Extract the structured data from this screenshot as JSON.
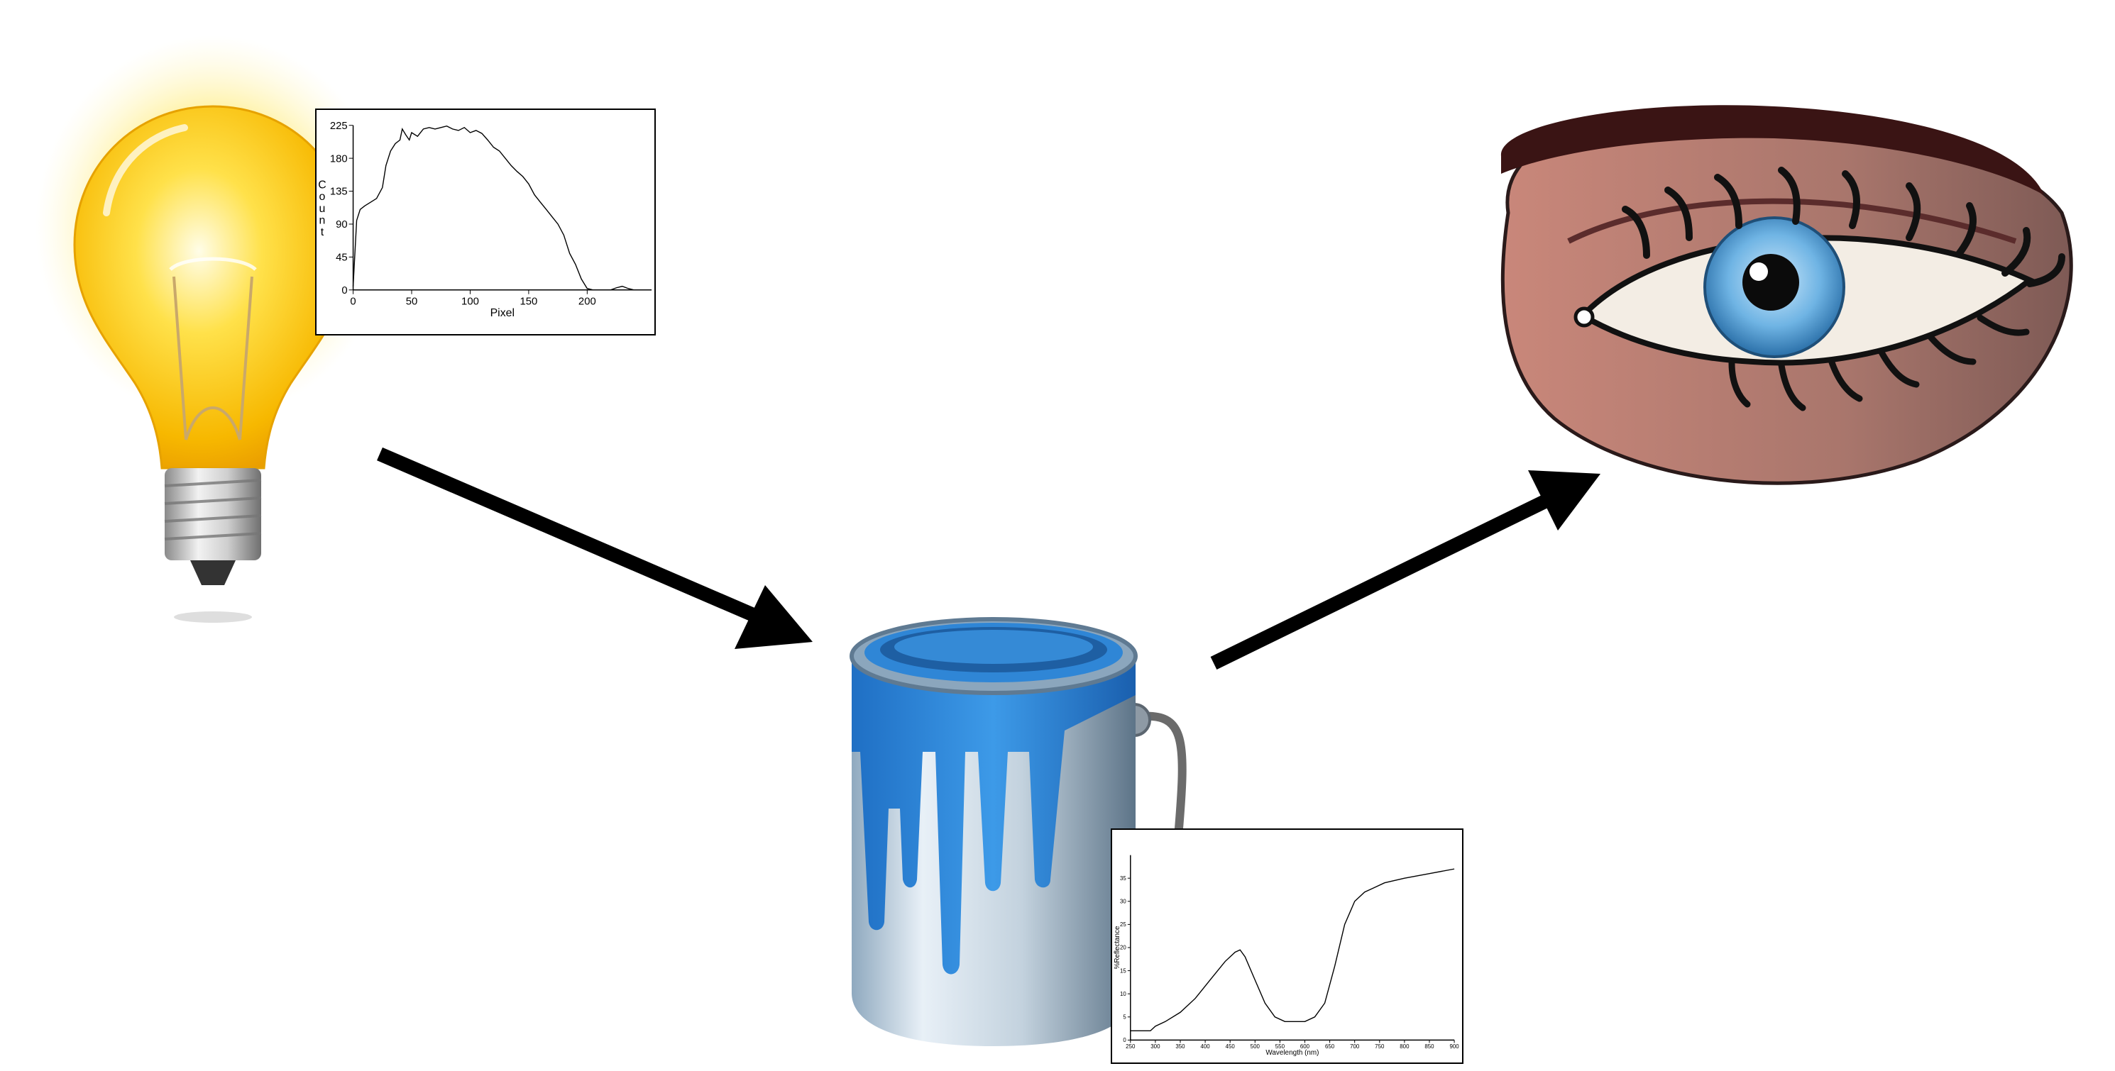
{
  "diagram": {
    "nodes": [
      {
        "id": "light-source",
        "icon": "light-bulb-icon"
      },
      {
        "id": "paint",
        "icon": "paint-bucket-icon"
      },
      {
        "id": "observer",
        "icon": "eye-icon"
      }
    ],
    "edges": [
      {
        "from": "light-source",
        "to": "paint"
      },
      {
        "from": "paint",
        "to": "observer"
      }
    ]
  },
  "chart_data": [
    {
      "type": "line",
      "xlabel": "Pixel",
      "ylabel": "Count",
      "xlim": [
        0,
        255
      ],
      "ylim": [
        0,
        225
      ],
      "xticks": [
        0,
        50,
        100,
        150,
        200
      ],
      "yticks": [
        0,
        45,
        90,
        135,
        180,
        225
      ],
      "grid": false,
      "x": [
        0,
        3,
        6,
        10,
        15,
        20,
        25,
        28,
        32,
        36,
        40,
        42,
        45,
        48,
        50,
        55,
        60,
        65,
        70,
        75,
        80,
        85,
        90,
        95,
        100,
        105,
        110,
        115,
        120,
        125,
        130,
        135,
        140,
        145,
        150,
        155,
        160,
        165,
        170,
        175,
        180,
        185,
        190,
        195,
        200,
        205,
        210,
        215,
        220,
        225,
        230,
        235,
        240,
        245,
        250,
        255
      ],
      "y": [
        5,
        95,
        110,
        115,
        120,
        125,
        140,
        170,
        190,
        200,
        205,
        220,
        212,
        205,
        215,
        210,
        220,
        222,
        220,
        222,
        224,
        220,
        218,
        222,
        215,
        218,
        214,
        205,
        195,
        190,
        180,
        170,
        162,
        155,
        145,
        130,
        120,
        110,
        100,
        90,
        75,
        50,
        35,
        15,
        2,
        0,
        0,
        0,
        0,
        3,
        5,
        2,
        0,
        0,
        0,
        0
      ]
    },
    {
      "type": "line",
      "xlabel": "Wavelength (nm)",
      "ylabel": "%Reflectance",
      "xlim": [
        250,
        900
      ],
      "ylim": [
        0,
        40
      ],
      "xticks": [
        250,
        300,
        350,
        400,
        450,
        500,
        550,
        600,
        650,
        700,
        750,
        800,
        850,
        900
      ],
      "yticks": [
        0,
        5,
        10,
        15,
        20,
        25,
        30,
        35
      ],
      "grid": false,
      "x": [
        250,
        270,
        290,
        300,
        320,
        350,
        380,
        410,
        440,
        460,
        470,
        480,
        500,
        520,
        540,
        560,
        580,
        600,
        620,
        640,
        660,
        680,
        700,
        720,
        740,
        760,
        800,
        850,
        900
      ],
      "y": [
        2,
        2,
        2,
        3,
        4,
        6,
        9,
        13,
        17,
        19,
        19.5,
        18,
        13,
        8,
        5,
        4,
        4,
        4,
        5,
        8,
        16,
        25,
        30,
        32,
        33,
        34,
        35,
        36,
        37
      ]
    }
  ]
}
